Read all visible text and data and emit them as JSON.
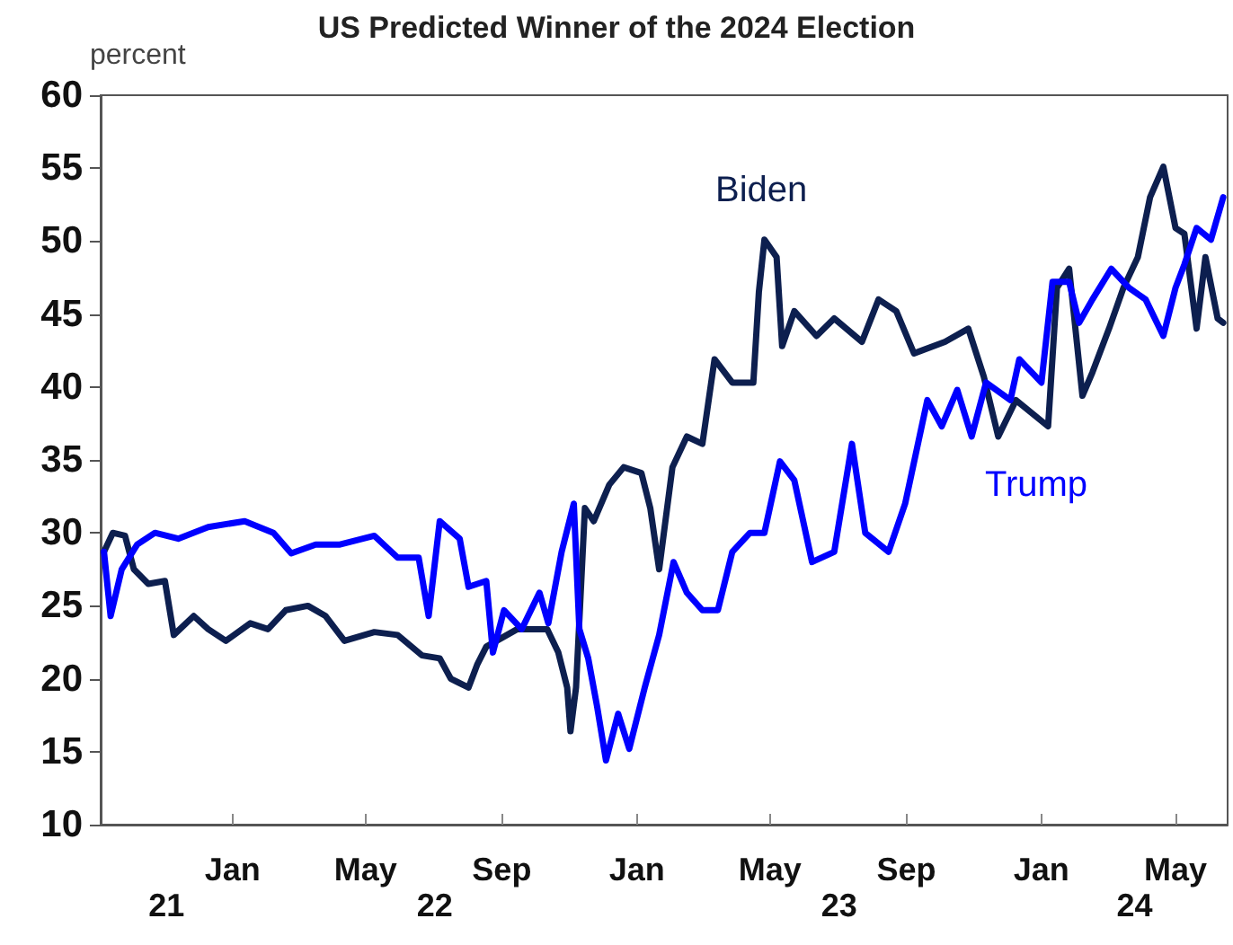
{
  "chart_data": {
    "type": "line",
    "title": "US Predicted Winner of the 2024 Election",
    "ylabel": "percent",
    "xlim": [
      "2021-09-04",
      "2024-06-17"
    ],
    "xticks": [
      {
        "value": "2022-01-01",
        "label": "Jan"
      },
      {
        "value": "2022-05-01",
        "label": "May"
      },
      {
        "value": "2022-09-01",
        "label": "Sep"
      },
      {
        "value": "2023-01-01",
        "label": "Jan"
      },
      {
        "value": "2023-05-01",
        "label": "May"
      },
      {
        "value": "2023-09-01",
        "label": "Sep"
      },
      {
        "value": "2024-01-01",
        "label": "Jan"
      },
      {
        "value": "2024-05-01",
        "label": "May"
      }
    ],
    "ylim": [
      10,
      60
    ],
    "yticks": [
      10,
      15,
      20,
      25,
      30,
      35,
      40,
      45,
      50,
      55,
      60
    ],
    "grid": false,
    "legend": false,
    "marker": "none",
    "line_style": "solid",
    "annotations": [
      "21",
      "22",
      "23",
      "24"
    ],
    "series": [
      {
        "name": "Biden",
        "color": "#0d1f4f",
        "x": [
          "2021-09-07",
          "2021-09-15",
          "2021-09-26",
          "2021-10-04",
          "2021-10-17",
          "2021-11-01",
          "2021-11-09",
          "2021-11-27",
          "2021-12-10",
          "2021-12-26",
          "2022-01-17",
          "2022-02-02",
          "2022-02-18",
          "2022-03-10",
          "2022-03-26",
          "2022-04-12",
          "2022-05-09",
          "2022-05-30",
          "2022-06-21",
          "2022-07-07",
          "2022-07-17",
          "2022-08-02",
          "2022-08-10",
          "2022-08-18",
          "2022-09-15",
          "2022-10-12",
          "2022-10-22",
          "2022-10-30",
          "2022-11-02",
          "2022-11-07",
          "2022-11-15",
          "2022-11-23",
          "2022-12-07",
          "2022-12-20",
          "2023-01-05",
          "2023-01-13",
          "2023-01-21",
          "2023-02-02",
          "2023-02-15",
          "2023-03-01",
          "2023-03-12",
          "2023-03-28",
          "2023-04-16",
          "2023-04-21",
          "2023-04-26",
          "2023-05-07",
          "2023-05-12",
          "2023-05-23",
          "2023-06-12",
          "2023-06-28",
          "2023-07-23",
          "2023-08-07",
          "2023-08-23",
          "2023-09-08",
          "2023-10-06",
          "2023-10-27",
          "2023-11-10",
          "2023-11-23",
          "2023-12-09",
          "2024-01-07",
          "2024-01-15",
          "2024-01-26",
          "2024-02-07",
          "2024-02-16",
          "2024-03-02",
          "2024-03-15",
          "2024-03-28",
          "2024-04-08",
          "2024-04-20",
          "2024-05-01",
          "2024-05-09",
          "2024-05-20",
          "2024-05-28",
          "2024-06-08",
          "2024-06-13"
        ],
        "values": [
          28.7,
          30,
          29.8,
          27.5,
          26.5,
          26.7,
          23,
          24.3,
          23.4,
          22.6,
          23.8,
          23.4,
          24.7,
          25,
          24.3,
          22.6,
          23.2,
          23,
          21.6,
          21.4,
          20,
          19.4,
          21,
          22.2,
          23.4,
          23.4,
          21.8,
          19.4,
          16.4,
          19.4,
          31.7,
          30.8,
          33.3,
          34.5,
          34.1,
          31.7,
          27.5,
          34.5,
          36.6,
          36.1,
          41.9,
          40.3,
          40.3,
          46.5,
          50.1,
          48.9,
          42.8,
          45.2,
          43.5,
          44.7,
          43.1,
          46,
          45.2,
          42.3,
          43.1,
          44,
          40.7,
          36.6,
          39.1,
          37.3,
          46.8,
          48.1,
          39.4,
          41,
          44,
          46.8,
          48.9,
          53,
          55.1,
          50.9,
          50.5,
          44,
          48.9,
          44.7,
          44.4
        ]
      },
      {
        "name": "Trump",
        "color": "#0000ff",
        "x": [
          "2021-09-07",
          "2021-09-13",
          "2021-09-23",
          "2021-10-07",
          "2021-10-23",
          "2021-11-13",
          "2021-12-10",
          "2022-01-12",
          "2022-02-07",
          "2022-02-23",
          "2022-03-17",
          "2022-04-08",
          "2022-05-09",
          "2022-05-30",
          "2022-06-18",
          "2022-06-27",
          "2022-07-07",
          "2022-07-25",
          "2022-08-02",
          "2022-08-18",
          "2022-08-24",
          "2022-09-03",
          "2022-09-19",
          "2022-10-05",
          "2022-10-13",
          "2022-10-25",
          "2022-11-05",
          "2022-11-10",
          "2022-11-18",
          "2022-11-26",
          "2022-12-04",
          "2022-12-15",
          "2022-12-25",
          "2023-01-08",
          "2023-01-21",
          "2023-02-03",
          "2023-02-15",
          "2023-03-01",
          "2023-03-15",
          "2023-03-28",
          "2023-04-13",
          "2023-04-26",
          "2023-05-10",
          "2023-05-23",
          "2023-06-08",
          "2023-06-28",
          "2023-07-14",
          "2023-07-26",
          "2023-08-16",
          "2023-08-31",
          "2023-09-20",
          "2023-10-03",
          "2023-10-17",
          "2023-10-30",
          "2023-11-12",
          "2023-12-04",
          "2023-12-12",
          "2024-01-01",
          "2024-01-11",
          "2024-01-26",
          "2024-02-04",
          "2024-02-16",
          "2024-03-04",
          "2024-03-20",
          "2024-04-04",
          "2024-04-20",
          "2024-05-01",
          "2024-05-09",
          "2024-05-20",
          "2024-06-02",
          "2024-06-13"
        ],
        "values": [
          28.7,
          24.3,
          27.5,
          29.2,
          30,
          29.6,
          30.4,
          30.8,
          30,
          28.6,
          29.2,
          29.2,
          29.8,
          28.3,
          28.3,
          24.3,
          30.8,
          29.6,
          26.3,
          26.7,
          21.8,
          24.7,
          23.4,
          25.9,
          23.8,
          28.7,
          32,
          23.4,
          21.4,
          18.1,
          14.4,
          17.6,
          15.2,
          19.4,
          23,
          28,
          25.9,
          24.7,
          24.7,
          28.7,
          30,
          30,
          34.9,
          33.6,
          28,
          28.7,
          36.1,
          30,
          28.7,
          32,
          39.1,
          37.3,
          39.8,
          36.6,
          40.3,
          39.1,
          41.9,
          40.3,
          47.2,
          47.2,
          44.4,
          46,
          48.1,
          46.8,
          46,
          43.5,
          46.8,
          48.4,
          50.9,
          50.1,
          53
        ]
      }
    ]
  }
}
